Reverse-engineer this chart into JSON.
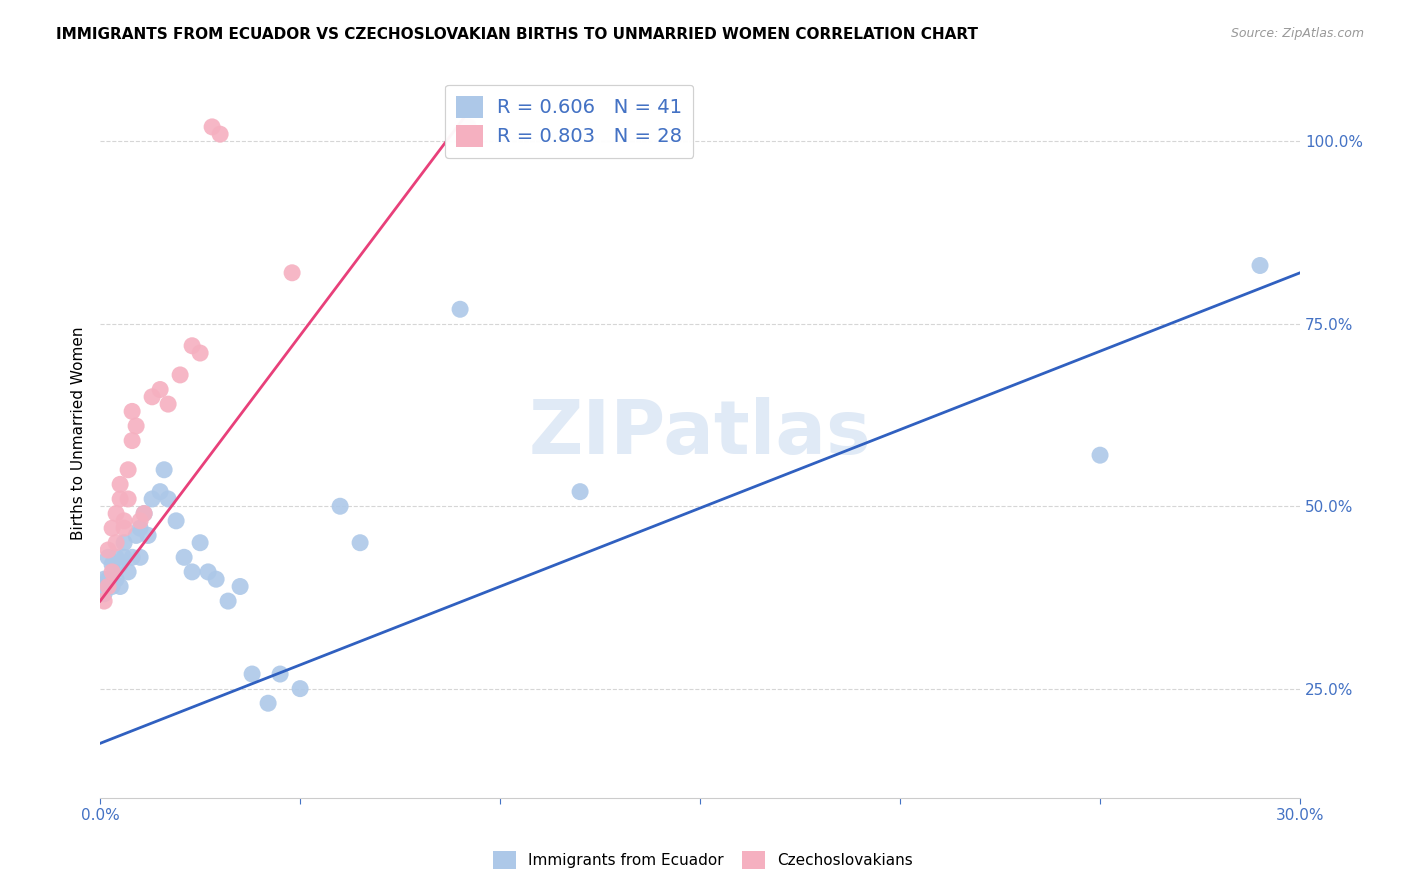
{
  "title": "IMMIGRANTS FROM ECUADOR VS CZECHOSLOVAKIAN BIRTHS TO UNMARRIED WOMEN CORRELATION CHART",
  "source": "Source: ZipAtlas.com",
  "ylabel": "Births to Unmarried Women",
  "legend1_label": "R = 0.606   N = 41",
  "legend2_label": "R = 0.803   N = 28",
  "legend1_color": "#adc8e8",
  "legend2_color": "#f5b0c0",
  "scatter_color_blue": "#adc8e8",
  "scatter_color_pink": "#f5b0c0",
  "line_color_blue": "#3060c0",
  "line_color_pink": "#e8407a",
  "watermark": "ZIPatlas",
  "xlim": [
    0.0,
    0.3
  ],
  "ylim": [
    0.1,
    1.1
  ],
  "yticks": [
    0.25,
    0.5,
    0.75,
    1.0
  ],
  "xtick_show": [
    0.0,
    0.3
  ],
  "xtick_minor": [
    0.05,
    0.1,
    0.15,
    0.2,
    0.25
  ],
  "blue_scatter_x": [
    0.001,
    0.001,
    0.002,
    0.002,
    0.003,
    0.003,
    0.004,
    0.004,
    0.005,
    0.005,
    0.006,
    0.006,
    0.007,
    0.008,
    0.009,
    0.01,
    0.01,
    0.011,
    0.012,
    0.013,
    0.015,
    0.016,
    0.017,
    0.019,
    0.021,
    0.023,
    0.025,
    0.027,
    0.029,
    0.032,
    0.035,
    0.038,
    0.042,
    0.045,
    0.05,
    0.06,
    0.065,
    0.09,
    0.12,
    0.25,
    0.29
  ],
  "blue_scatter_y": [
    0.38,
    0.4,
    0.4,
    0.43,
    0.39,
    0.42,
    0.4,
    0.43,
    0.39,
    0.42,
    0.43,
    0.45,
    0.41,
    0.43,
    0.46,
    0.43,
    0.47,
    0.49,
    0.46,
    0.51,
    0.52,
    0.55,
    0.51,
    0.48,
    0.43,
    0.41,
    0.45,
    0.41,
    0.4,
    0.37,
    0.39,
    0.27,
    0.23,
    0.27,
    0.25,
    0.5,
    0.45,
    0.77,
    0.52,
    0.57,
    0.83
  ],
  "pink_scatter_x": [
    0.001,
    0.002,
    0.002,
    0.003,
    0.003,
    0.004,
    0.004,
    0.005,
    0.005,
    0.006,
    0.006,
    0.007,
    0.007,
    0.008,
    0.008,
    0.009,
    0.01,
    0.011,
    0.013,
    0.015,
    0.017,
    0.02,
    0.023,
    0.025,
    0.028,
    0.03,
    0.048,
    0.092
  ],
  "pink_scatter_y": [
    0.37,
    0.39,
    0.44,
    0.41,
    0.47,
    0.45,
    0.49,
    0.51,
    0.53,
    0.47,
    0.48,
    0.51,
    0.55,
    0.59,
    0.63,
    0.61,
    0.48,
    0.49,
    0.65,
    0.66,
    0.64,
    0.68,
    0.72,
    0.71,
    1.02,
    1.01,
    0.82,
    1.02
  ],
  "blue_line_x": [
    0.0,
    0.3
  ],
  "blue_line_y": [
    0.175,
    0.82
  ],
  "pink_line_x": [
    0.0,
    0.092
  ],
  "pink_line_y": [
    0.37,
    1.04
  ]
}
